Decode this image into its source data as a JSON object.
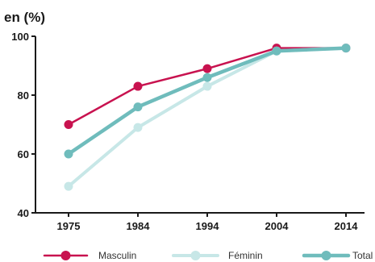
{
  "chart_data": {
    "type": "line",
    "unit_label": "en (%)",
    "categories": [
      "1975",
      "1984",
      "1994",
      "2004",
      "2014"
    ],
    "ylim": [
      40,
      100
    ],
    "yticks": [
      "40",
      "60",
      "80",
      "100"
    ],
    "grid": false,
    "legend_position": "bottom",
    "series": [
      {
        "name": "Masculin",
        "color": "#c8124f",
        "values": [
          70,
          83,
          89,
          96,
          96
        ]
      },
      {
        "name": "Féminin",
        "color": "#c7e7e7",
        "values": [
          49,
          69,
          83,
          95,
          96
        ]
      },
      {
        "name": "Total",
        "color": "#6fbcbc",
        "values": [
          60,
          76,
          86,
          95,
          96
        ]
      }
    ]
  }
}
